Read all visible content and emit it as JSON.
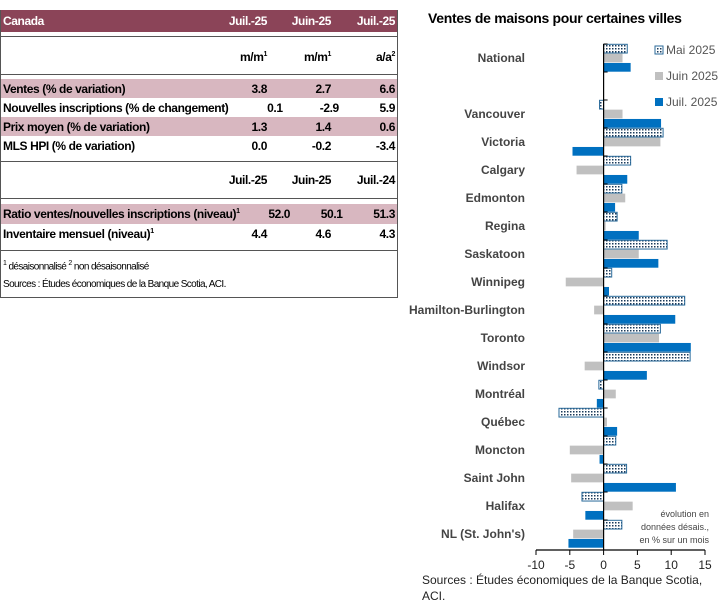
{
  "table": {
    "title": "Canada",
    "cols1": [
      "Juil.-25",
      "Juin-25",
      "Juil.-25"
    ],
    "units": [
      {
        "t": "m/m",
        "s": "1"
      },
      {
        "t": "m/m",
        "s": "1"
      },
      {
        "t": "a/a",
        "s": "2"
      }
    ],
    "rows1": [
      {
        "label": "Ventes (% de variation)",
        "v": [
          "3.8",
          "2.7",
          "6.6"
        ]
      },
      {
        "label": "Nouvelles inscriptions (% de changement)",
        "v": [
          "0.1",
          "-2.9",
          "5.9"
        ]
      },
      {
        "label": "Prix moyen (% de variation)",
        "v": [
          "1.3",
          "1.4",
          "0.6"
        ]
      },
      {
        "label": "MLS HPI (% de variation)",
        "v": [
          "0.0",
          "-0.2",
          "-3.4"
        ]
      }
    ],
    "cols2": [
      "Juil.-25",
      "Juin-25",
      "Juil.-24"
    ],
    "rows2": [
      {
        "label": "Ratio ventes/nouvelles inscriptions (niveau)",
        "sup": "1",
        "v": [
          "52.0",
          "50.1",
          "51.3"
        ]
      },
      {
        "label": "Inventaire mensuel (niveau)",
        "sup": "1",
        "v": [
          "4.4",
          "4.6",
          "4.3"
        ]
      }
    ],
    "foot_sup1": "1",
    "foot1": " désaisonnalisé ",
    "foot_sup2": "2",
    "foot2": " non désaisonnalisé",
    "source": "Sources : Études économiques de la Banque Scotia, ACI."
  },
  "chart_data": {
    "type": "bar",
    "orientation": "horizontal",
    "title": "Ventes de maisons pour certaines villes",
    "categories": [
      "National",
      "",
      "Vancouver",
      "Victoria",
      "Calgary",
      "Edmonton",
      "Regina",
      "Saskatoon",
      "Winnipeg",
      "Hamilton-Burlington",
      "Toronto",
      "Windsor",
      "Montréal",
      "Québec",
      "Moncton",
      "Saint John",
      "Halifax",
      "NL (St. John's)"
    ],
    "series": [
      {
        "name": "Mai 2025",
        "color": "#ffffff",
        "pattern": "dotted",
        "values": [
          3.5,
          null,
          -0.6,
          8.8,
          4.0,
          2.7,
          2.0,
          9.4,
          1.2,
          12.0,
          8.4,
          12.8,
          -0.7,
          -6.6,
          1.8,
          3.4,
          -3.2,
          2.7
        ]
      },
      {
        "name": "Juin 2025",
        "color": "#C0C0C0",
        "values": [
          2.8,
          null,
          2.8,
          8.4,
          -4.0,
          3.2,
          0.3,
          5.2,
          -5.6,
          -1.4,
          8.2,
          -2.8,
          1.8,
          0.5,
          -5.0,
          -4.8,
          4.3,
          -4.5
        ]
      },
      {
        "name": "Juil. 2025",
        "color": "#0070C0",
        "values": [
          4.0,
          null,
          8.5,
          -4.6,
          3.5,
          1.7,
          5.2,
          8.1,
          0.8,
          10.6,
          12.9,
          6.4,
          -1.0,
          2.0,
          -0.6,
          10.7,
          -2.7,
          -5.2
        ]
      }
    ],
    "xlim": [
      -10,
      15
    ],
    "xticks": [
      "-10",
      "-5",
      "0",
      "5",
      "10",
      "15"
    ],
    "legend": "top-right",
    "annotation": [
      "évolution en",
      "données désais.,",
      "en % sur un mois"
    ],
    "source": [
      "Sources : Études économiques  de la Banque Scotia,",
      "ACI."
    ]
  }
}
